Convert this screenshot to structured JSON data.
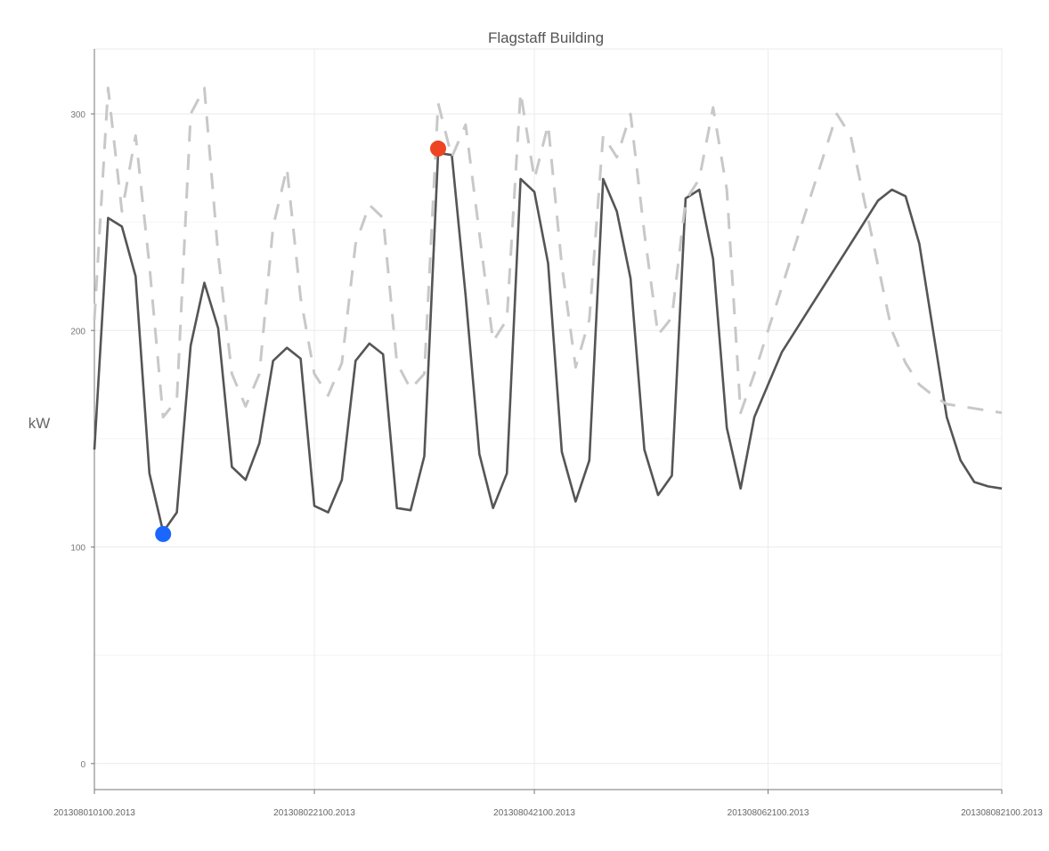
{
  "chart_data": {
    "type": "line",
    "title": "Flagstaff Building",
    "xlabel": "",
    "ylabel": "kW",
    "ylim": [
      -12,
      330
    ],
    "yticks": [
      0,
      100,
      200,
      300
    ],
    "xlim": [
      0,
      66
    ],
    "xticks": [
      {
        "x": 0,
        "label": "201308010100.2013"
      },
      {
        "x": 16,
        "label": "201308022100.2013"
      },
      {
        "x": 32,
        "label": "201308042100.2013"
      },
      {
        "x": 49,
        "label": "201308062100.2013"
      },
      {
        "x": 66,
        "label": "201308082100.2013"
      }
    ],
    "grid": true,
    "legend": "none",
    "series": [
      {
        "style": "solid",
        "color": "#555555",
        "x": [
          0,
          1,
          2,
          3,
          4,
          5,
          6,
          7,
          8,
          9,
          10,
          11,
          12,
          13,
          14,
          15,
          16,
          17,
          18,
          19,
          20,
          21,
          22,
          23,
          24,
          25,
          26,
          27,
          28,
          29,
          30,
          31,
          32,
          33,
          34,
          35,
          36,
          37,
          38,
          39,
          40,
          41,
          42,
          43,
          44,
          45,
          46,
          47,
          48,
          49,
          50,
          51,
          52,
          53,
          54,
          55,
          56,
          57,
          58,
          59,
          60,
          61,
          62,
          63,
          64,
          65,
          66
        ],
        "values": [
          145,
          252,
          248,
          225,
          134,
          107,
          116,
          193,
          222,
          201,
          137,
          131,
          148,
          186,
          192,
          187,
          119,
          116,
          131,
          186,
          194,
          189,
          118,
          117,
          142,
          282,
          281,
          216,
          143,
          118,
          134,
          270,
          264,
          231,
          144,
          121,
          140,
          270,
          255,
          224,
          145,
          124,
          133,
          261,
          265,
          233,
          155,
          127,
          160,
          175,
          190,
          200,
          210,
          220,
          230,
          240,
          250,
          260,
          265,
          262,
          240,
          200,
          160,
          140,
          130,
          128,
          127
        ]
      },
      {
        "style": "dashed",
        "color": "#c8c8c8",
        "x": [
          0,
          1,
          2,
          3,
          4,
          5,
          6,
          7,
          8,
          9,
          10,
          11,
          12,
          13,
          14,
          15,
          16,
          17,
          18,
          19,
          20,
          21,
          22,
          23,
          24,
          25,
          26,
          27,
          28,
          29,
          30,
          31,
          32,
          33,
          34,
          35,
          36,
          37,
          38,
          39,
          40,
          41,
          42,
          43,
          44,
          45,
          46,
          47,
          48,
          49,
          50,
          51,
          52,
          53,
          54,
          55,
          56,
          57,
          58,
          59,
          60,
          61,
          62,
          63,
          64,
          65,
          66
        ],
        "values": [
          205,
          312,
          255,
          290,
          230,
          160,
          168,
          300,
          312,
          235,
          180,
          165,
          180,
          248,
          275,
          215,
          180,
          170,
          185,
          240,
          258,
          252,
          185,
          173,
          180,
          305,
          280,
          295,
          245,
          195,
          205,
          310,
          270,
          295,
          230,
          183,
          205,
          290,
          280,
          300,
          245,
          198,
          206,
          260,
          270,
          303,
          265,
          162,
          180,
          200,
          220,
          240,
          260,
          280,
          300,
          290,
          260,
          230,
          200,
          185,
          175,
          170,
          166,
          165,
          164,
          163,
          162
        ]
      }
    ],
    "markers": [
      {
        "x": 5,
        "y": 106,
        "color": "#1a66ff"
      },
      {
        "x": 25,
        "y": 284,
        "color": "#ee4422"
      }
    ]
  }
}
